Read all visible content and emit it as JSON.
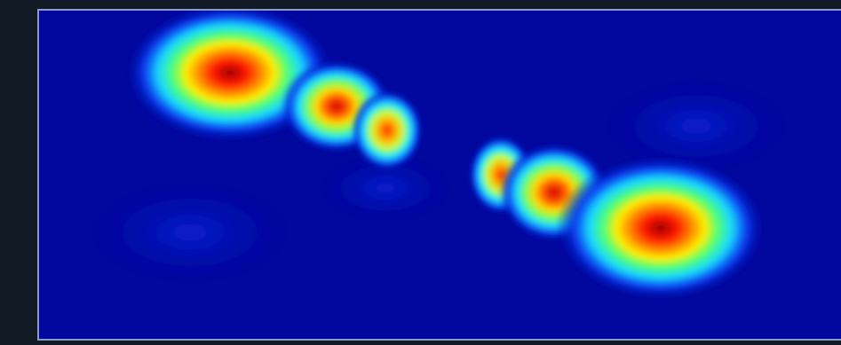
{
  "image": {
    "kind": "heatmap-render",
    "palette": "jet",
    "colors": {
      "page_background": "#111a24",
      "frame_border": "#8a9acb",
      "field_background": "#02079e",
      "low": "#0a1ad8",
      "cool": "#1fd0ff",
      "mid": "#4dff7a",
      "warm": "#ffe400",
      "hot": "#ff2a00",
      "peak": "#a80000"
    }
  }
}
